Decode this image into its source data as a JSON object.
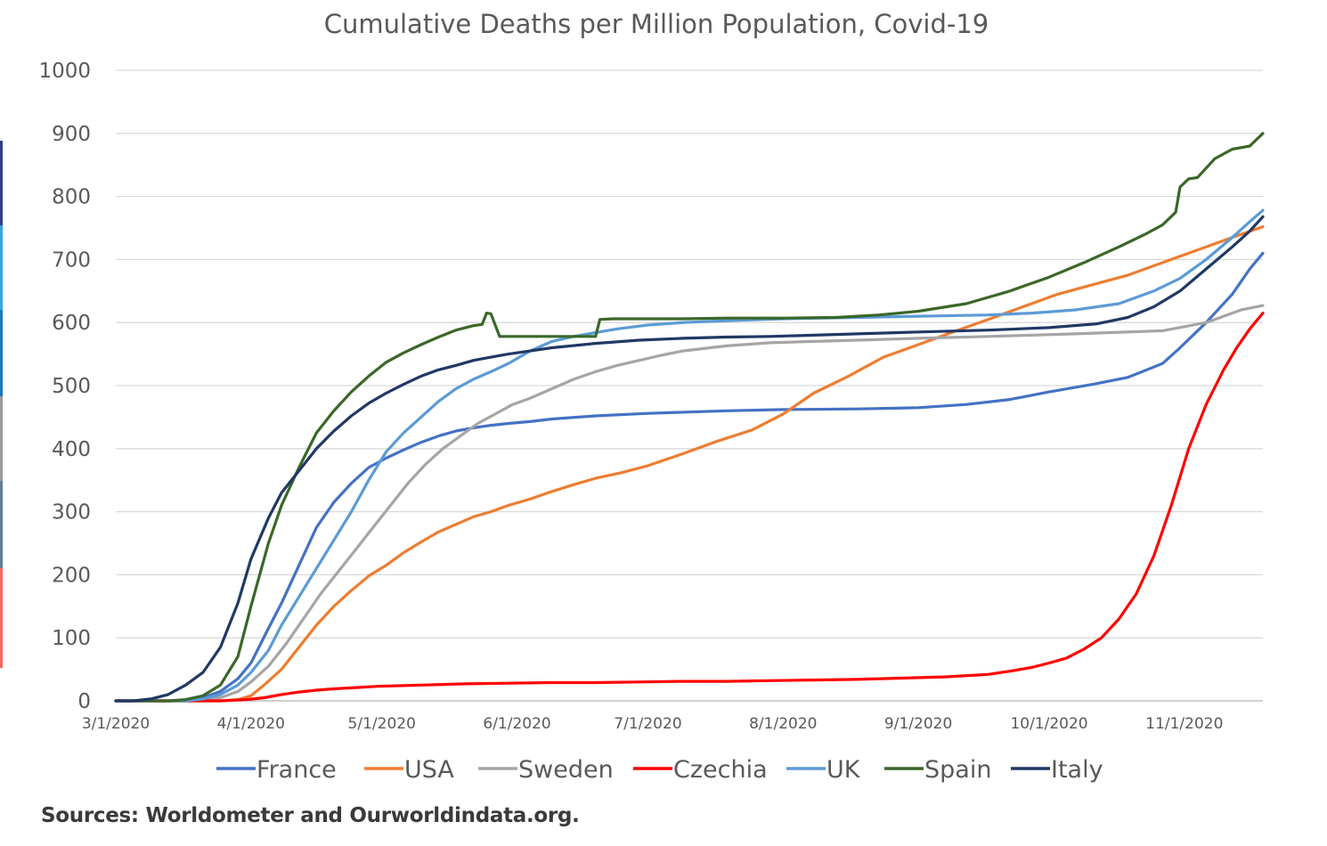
{
  "page": {
    "source_note": "Sources: Worldometer and Ourworldindata.org.",
    "edge_strip_colors": [
      "#2f3f8a",
      "#33a7e3",
      "#1c77c6",
      "#9a9a9a",
      "#5e7f96",
      "#f26c5d"
    ]
  },
  "chart_data": {
    "type": "line",
    "title": "Cumulative Deaths per Million Population, Covid-19",
    "xlabel": "",
    "ylabel": "",
    "ylim": [
      0,
      1000
    ],
    "yticks": [
      0,
      100,
      200,
      300,
      400,
      500,
      600,
      700,
      800,
      900,
      1000
    ],
    "x_unit": "days since 3/1/2020",
    "xlim": [
      0,
      263
    ],
    "xticks": [
      {
        "day": 0,
        "label": "3/1/2020"
      },
      {
        "day": 31,
        "label": "4/1/2020"
      },
      {
        "day": 61,
        "label": "5/1/2020"
      },
      {
        "day": 92,
        "label": "6/1/2020"
      },
      {
        "day": 122,
        "label": "7/1/2020"
      },
      {
        "day": 153,
        "label": "8/1/2020"
      },
      {
        "day": 184,
        "label": "9/1/2020"
      },
      {
        "day": 214,
        "label": "10/1/2020"
      },
      {
        "day": 245,
        "label": "11/1/2020"
      }
    ],
    "grid": true,
    "legend_position": "bottom",
    "series": [
      {
        "name": "France",
        "color": "#4472c4",
        "x": [
          0,
          16,
          20,
          24,
          28,
          31,
          35,
          38,
          42,
          46,
          50,
          54,
          58,
          62,
          66,
          70,
          74,
          78,
          82,
          86,
          90,
          95,
          100,
          110,
          122,
          140,
          153,
          170,
          184,
          195,
          205,
          214,
          224,
          232,
          240,
          244,
          250,
          256,
          260,
          263
        ],
        "y": [
          0,
          0,
          5,
          15,
          35,
          60,
          115,
          155,
          215,
          275,
          315,
          345,
          370,
          385,
          398,
          410,
          420,
          428,
          433,
          437,
          440,
          443,
          447,
          452,
          456,
          460,
          462,
          463,
          465,
          470,
          478,
          490,
          502,
          513,
          535,
          560,
          600,
          645,
          685,
          710
        ]
      },
      {
        "name": "USA",
        "color": "#ed7d31",
        "x": [
          0,
          24,
          28,
          31,
          34,
          38,
          42,
          46,
          50,
          54,
          58,
          62,
          66,
          70,
          74,
          78,
          82,
          86,
          90,
          95,
          100,
          105,
          110,
          116,
          122,
          130,
          138,
          146,
          153,
          160,
          168,
          176,
          184,
          192,
          200,
          208,
          216,
          224,
          232,
          240,
          248,
          256,
          263
        ],
        "y": [
          0,
          0,
          2,
          8,
          25,
          50,
          85,
          120,
          150,
          175,
          198,
          215,
          235,
          252,
          268,
          280,
          292,
          300,
          310,
          320,
          332,
          343,
          353,
          362,
          373,
          392,
          412,
          430,
          455,
          488,
          515,
          545,
          565,
          585,
          605,
          625,
          645,
          660,
          675,
          695,
          715,
          735,
          752
        ]
      },
      {
        "name": "Sweden",
        "color": "#a5a5a5",
        "x": [
          0,
          20,
          24,
          28,
          31,
          35,
          39,
          43,
          47,
          51,
          55,
          59,
          63,
          67,
          71,
          75,
          79,
          83,
          87,
          91,
          95,
          100,
          105,
          110,
          115,
          120,
          125,
          130,
          140,
          150,
          160,
          170,
          184,
          200,
          220,
          240,
          250,
          258,
          263
        ],
        "y": [
          0,
          0,
          5,
          15,
          30,
          55,
          90,
          130,
          170,
          205,
          240,
          275,
          310,
          345,
          375,
          400,
          420,
          440,
          455,
          470,
          480,
          495,
          510,
          522,
          532,
          540,
          548,
          555,
          563,
          568,
          570,
          572,
          575,
          578,
          582,
          587,
          600,
          620,
          627
        ]
      },
      {
        "name": "Czechia",
        "color": "#ff0000",
        "x": [
          0,
          24,
          30,
          34,
          38,
          42,
          46,
          50,
          55,
          60,
          65,
          70,
          75,
          80,
          90,
          100,
          110,
          120,
          130,
          140,
          150,
          160,
          170,
          180,
          190,
          200,
          205,
          210,
          214,
          218,
          222,
          226,
          230,
          234,
          238,
          242,
          246,
          250,
          254,
          257,
          260,
          263
        ],
        "y": [
          0,
          0,
          2,
          5,
          10,
          14,
          17,
          19,
          21,
          23,
          24,
          25,
          26,
          27,
          28,
          29,
          29,
          30,
          31,
          31,
          32,
          33,
          34,
          36,
          38,
          42,
          47,
          53,
          60,
          68,
          82,
          100,
          130,
          170,
          230,
          310,
          400,
          470,
          525,
          560,
          590,
          615
        ]
      },
      {
        "name": "UK",
        "color": "#5b9bd5",
        "x": [
          0,
          16,
          20,
          24,
          28,
          31,
          35,
          38,
          42,
          46,
          50,
          54,
          58,
          62,
          66,
          70,
          74,
          78,
          82,
          86,
          90,
          95,
          100,
          105,
          110,
          115,
          122,
          130,
          140,
          153,
          170,
          184,
          200,
          210,
          220,
          230,
          238,
          244,
          250,
          256,
          260,
          263
        ],
        "y": [
          0,
          0,
          3,
          10,
          25,
          45,
          80,
          120,
          165,
          210,
          255,
          300,
          350,
          395,
          425,
          450,
          475,
          495,
          510,
          522,
          535,
          555,
          570,
          578,
          584,
          590,
          596,
          600,
          603,
          606,
          608,
          610,
          612,
          615,
          620,
          630,
          650,
          670,
          700,
          735,
          760,
          778
        ]
      },
      {
        "name": "Spain",
        "color": "#3a6728",
        "x": [
          0,
          12,
          16,
          20,
          24,
          28,
          31,
          35,
          38,
          42,
          46,
          50,
          54,
          58,
          62,
          66,
          70,
          74,
          78,
          82,
          84,
          85,
          86,
          88,
          90,
          95,
          100,
          105,
          110,
          111,
          114,
          120,
          130,
          140,
          153,
          165,
          175,
          184,
          195,
          205,
          214,
          222,
          230,
          236,
          240,
          243,
          244,
          246,
          248,
          252,
          256,
          260,
          263
        ],
        "y": [
          0,
          0,
          2,
          8,
          25,
          70,
          150,
          250,
          310,
          370,
          425,
          460,
          490,
          515,
          537,
          552,
          565,
          577,
          588,
          595,
          597,
          615,
          614,
          578,
          578,
          578,
          578,
          578,
          578,
          605,
          606,
          606,
          606,
          607,
          607,
          608,
          612,
          618,
          630,
          650,
          672,
          695,
          720,
          740,
          755,
          775,
          815,
          828,
          830,
          860,
          875,
          880,
          900
        ]
      },
      {
        "name": "Italy",
        "color": "#203864",
        "x": [
          0,
          4,
          8,
          12,
          16,
          20,
          24,
          28,
          31,
          35,
          38,
          42,
          46,
          50,
          54,
          58,
          62,
          66,
          70,
          74,
          78,
          82,
          86,
          90,
          95,
          100,
          110,
          120,
          130,
          140,
          150,
          160,
          170,
          184,
          200,
          214,
          225,
          232,
          238,
          244,
          250,
          256,
          260,
          263
        ],
        "y": [
          0,
          0,
          3,
          10,
          25,
          45,
          85,
          155,
          225,
          290,
          330,
          365,
          400,
          428,
          452,
          472,
          488,
          502,
          515,
          525,
          532,
          540,
          545,
          550,
          555,
          560,
          567,
          572,
          575,
          577,
          578,
          580,
          582,
          585,
          588,
          592,
          598,
          608,
          625,
          650,
          685,
          720,
          745,
          768
        ]
      }
    ]
  }
}
